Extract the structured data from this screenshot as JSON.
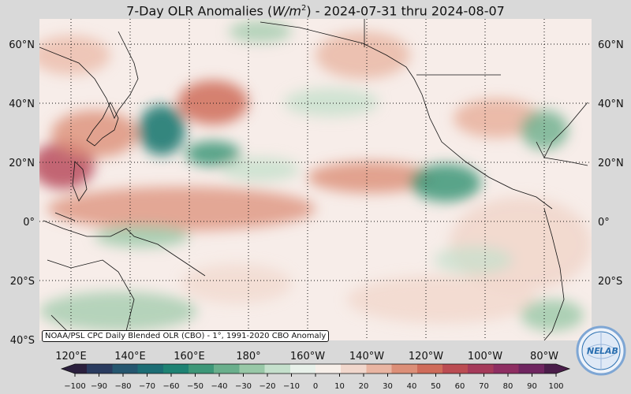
{
  "title": {
    "prefix": "7-Day OLR Anomalies (",
    "unit_base": "W/m",
    "unit_exp": "2",
    "suffix": ") - 2024-07-31 thru 2024-08-07"
  },
  "lat_labels": [
    "60°N",
    "40°N",
    "20°N",
    "0°",
    "20°S",
    "40°S"
  ],
  "lon_labels": [
    "120°E",
    "140°E",
    "160°E",
    "180°",
    "160°W",
    "140°W",
    "120°W",
    "100°W",
    "80°W"
  ],
  "colorbar": {
    "ticks": [
      "−100",
      "−90",
      "−80",
      "−70",
      "−60",
      "−50",
      "−40",
      "−30",
      "−20",
      "−10",
      "0",
      "10",
      "20",
      "30",
      "40",
      "50",
      "60",
      "70",
      "80",
      "90",
      "100"
    ],
    "colors": [
      "#2b1f3d",
      "#2a3b5f",
      "#25566f",
      "#1c6d74",
      "#1e8273",
      "#3d9778",
      "#6aaf8c",
      "#98c8a7",
      "#c5e0cc",
      "#e8f1ea",
      "#f7efe9",
      "#f1d7cc",
      "#e9b5a2",
      "#dc8f78",
      "#cf6c5a",
      "#bb4c52",
      "#a53a5a",
      "#8e2e62",
      "#6f2560",
      "#4a1d4a"
    ]
  },
  "credit": "NOAA/PSL CPC Daily Blended OLR (CBO) - 1°, 1991-2020 CBO Anomaly",
  "logo": {
    "text_a": "NE",
    "text_b": "LAB",
    "ring_color": "#2a6fb0"
  }
}
